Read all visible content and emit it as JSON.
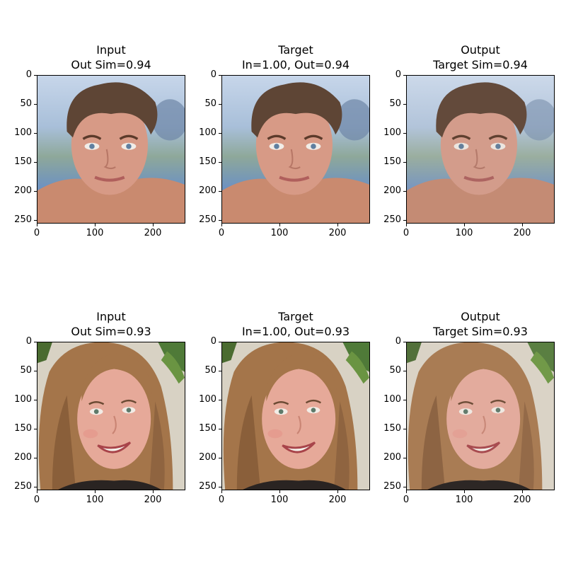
{
  "rows": [
    {
      "subject": "young man with tousled brown hair, blue eyes, bare shoulders, blurred blue/green outdoor background",
      "panels": [
        {
          "title_line1": "Input",
          "title_line2": "Out Sim=0.94"
        },
        {
          "title_line1": "Target",
          "title_line2": "In=1.00, Out=0.94"
        },
        {
          "title_line1": "Output",
          "title_line2": "Target Sim=0.94"
        }
      ]
    },
    {
      "subject": "smiling woman with long light-brown hair, green leaves in background",
      "panels": [
        {
          "title_line1": "Input",
          "title_line2": "Out Sim=0.93"
        },
        {
          "title_line1": "Target",
          "title_line2": "In=1.00, Out=0.93"
        },
        {
          "title_line1": "Output",
          "title_line2": "Target Sim=0.93"
        }
      ]
    }
  ],
  "yticks": [
    "0",
    "50",
    "100",
    "150",
    "200",
    "250"
  ],
  "xticks": [
    "0",
    "100",
    "200"
  ],
  "image_size": 256
}
